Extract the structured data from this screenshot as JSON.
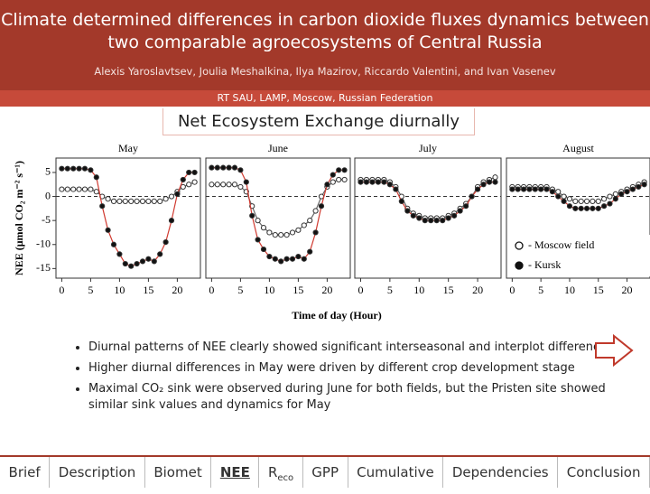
{
  "header": {
    "title": "Climate determined differences in carbon dioxide fluxes dynamics between two comparable agroecosystems of Central Russia",
    "authors": "Alexis Yaroslavtsev, Joulia Meshalkina, Ilya Mazirov, Riccardo Valentini, and Ivan Vasenev",
    "affiliation": "RT SAU, LAMP, Moscow, Russian Federation"
  },
  "section_title": "Net Ecosystem Exchange diurnally",
  "chart_data": [
    {
      "type": "line",
      "title": "May",
      "ylabel": "NEE (μmol CO₂ m⁻² s⁻¹)",
      "xlim": [
        -1,
        24
      ],
      "xticks": [
        0,
        5,
        10,
        15,
        20
      ],
      "ylim": [
        -17,
        8
      ],
      "yticks": [
        5,
        0,
        -5,
        -10,
        -15
      ],
      "hline": 0,
      "x": [
        0,
        1,
        2,
        3,
        4,
        5,
        6,
        7,
        8,
        9,
        10,
        11,
        12,
        13,
        14,
        15,
        16,
        17,
        18,
        19,
        20,
        21,
        22,
        23
      ],
      "series": [
        {
          "name": "- Moscow field",
          "color": "#666666",
          "marker": "open",
          "values": [
            1.5,
            1.5,
            1.5,
            1.5,
            1.5,
            1.5,
            1,
            0,
            -0.5,
            -1,
            -1,
            -1,
            -1,
            -1,
            -1,
            -1,
            -1,
            -1,
            -0.5,
            0,
            1,
            2,
            2.5,
            3
          ]
        },
        {
          "name": "- Kursk",
          "color": "#d03a30",
          "marker": "filled",
          "values": [
            5.8,
            5.8,
            5.8,
            5.8,
            5.8,
            5.5,
            4,
            -2,
            -7,
            -10,
            -12,
            -14,
            -14.5,
            -14,
            -13.5,
            -13,
            -13.5,
            -12,
            -9.5,
            -5,
            0.5,
            3.5,
            5,
            5
          ]
        }
      ]
    },
    {
      "type": "line",
      "title": "June",
      "xlabel": "Time of day (Hour)",
      "xlim": [
        -1,
        24
      ],
      "xticks": [
        0,
        5,
        10,
        15,
        20
      ],
      "ylim": [
        -17,
        8
      ],
      "hline": 0,
      "x": [
        0,
        1,
        2,
        3,
        4,
        5,
        6,
        7,
        8,
        9,
        10,
        11,
        12,
        13,
        14,
        15,
        16,
        17,
        18,
        19,
        20,
        21,
        22,
        23
      ],
      "series": [
        {
          "name": "- Moscow field",
          "color": "#666666",
          "marker": "open",
          "values": [
            2.5,
            2.5,
            2.5,
            2.5,
            2.5,
            2,
            1,
            -2,
            -5,
            -6.5,
            -7.5,
            -8,
            -8,
            -8,
            -7.5,
            -7,
            -6,
            -5,
            -3,
            0,
            2,
            3,
            3.5,
            3.5
          ]
        },
        {
          "name": "- Kursk",
          "color": "#d03a30",
          "marker": "filled",
          "values": [
            6,
            6,
            6,
            6,
            6,
            5.5,
            3,
            -4,
            -9,
            -11,
            -12.5,
            -13,
            -13.5,
            -13,
            -13,
            -12.5,
            -13,
            -11.5,
            -7.5,
            -2,
            2.5,
            4.5,
            5.5,
            5.5
          ]
        }
      ]
    },
    {
      "type": "line",
      "title": "July",
      "xlim": [
        -1,
        24
      ],
      "xticks": [
        0,
        5,
        10,
        15,
        20
      ],
      "ylim": [
        -17,
        8
      ],
      "hline": 0,
      "x": [
        0,
        1,
        2,
        3,
        4,
        5,
        6,
        7,
        8,
        9,
        10,
        11,
        12,
        13,
        14,
        15,
        16,
        17,
        18,
        19,
        20,
        21,
        22,
        23
      ],
      "series": [
        {
          "name": "- Moscow field",
          "color": "#666666",
          "marker": "open",
          "values": [
            3.5,
            3.5,
            3.5,
            3.5,
            3.5,
            3,
            2,
            0,
            -2.5,
            -3.5,
            -4,
            -4.5,
            -4.5,
            -4.5,
            -4.5,
            -4,
            -3.5,
            -2.5,
            -1.5,
            0,
            2,
            3,
            3.5,
            4
          ]
        },
        {
          "name": "- Kursk",
          "color": "#d03a30",
          "marker": "filled",
          "values": [
            3,
            3,
            3,
            3,
            3,
            2.5,
            1.5,
            -1,
            -3,
            -4,
            -4.5,
            -5,
            -5,
            -5,
            -5,
            -4.5,
            -4,
            -3,
            -2,
            0,
            1.5,
            2.5,
            3,
            3
          ]
        }
      ]
    },
    {
      "type": "line",
      "title": "August",
      "xlim": [
        -1,
        24
      ],
      "xticks": [
        0,
        5,
        10,
        15,
        20
      ],
      "ylim": [
        -17,
        8
      ],
      "hline": 0,
      "legend": "lower right",
      "x": [
        0,
        1,
        2,
        3,
        4,
        5,
        6,
        7,
        8,
        9,
        10,
        11,
        12,
        13,
        14,
        15,
        16,
        17,
        18,
        19,
        20,
        21,
        22,
        23
      ],
      "series": [
        {
          "name": "- Moscow field",
          "color": "#666666",
          "marker": "open",
          "values": [
            2,
            2,
            2,
            2,
            2,
            2,
            2,
            1.5,
            1,
            0,
            -0.5,
            -1,
            -1,
            -1,
            -1,
            -1,
            -0.5,
            0,
            0.5,
            1,
            1.5,
            2,
            2.5,
            3
          ]
        },
        {
          "name": "- Kursk",
          "color": "#d03a30",
          "marker": "filled",
          "values": [
            1.5,
            1.5,
            1.5,
            1.5,
            1.5,
            1.5,
            1.5,
            1,
            0,
            -1,
            -2,
            -2.5,
            -2.5,
            -2.5,
            -2.5,
            -2.5,
            -2,
            -1.5,
            -0.5,
            0.5,
            1,
            1.5,
            2,
            2.5
          ]
        }
      ]
    }
  ],
  "bullets": [
    "Diurnal patterns of NEE clearly showed significant  interseasonal and interplot differences",
    "Higher diurnal differences in May were driven by different crop development stage",
    "Maximal CO₂ sink were observed  during June for both fields, but the Pristen  site showed similar sink values and dynamics for May"
  ],
  "nav": [
    {
      "label": "Brief"
    },
    {
      "label": "Description"
    },
    {
      "label": "Biomet"
    },
    {
      "label": "NEE",
      "current": true
    },
    {
      "label": "R",
      "sub": "eco"
    },
    {
      "label": "GPP"
    },
    {
      "label": "Cumulative"
    },
    {
      "label": "Dependencies"
    },
    {
      "label": "Conclusion"
    }
  ]
}
